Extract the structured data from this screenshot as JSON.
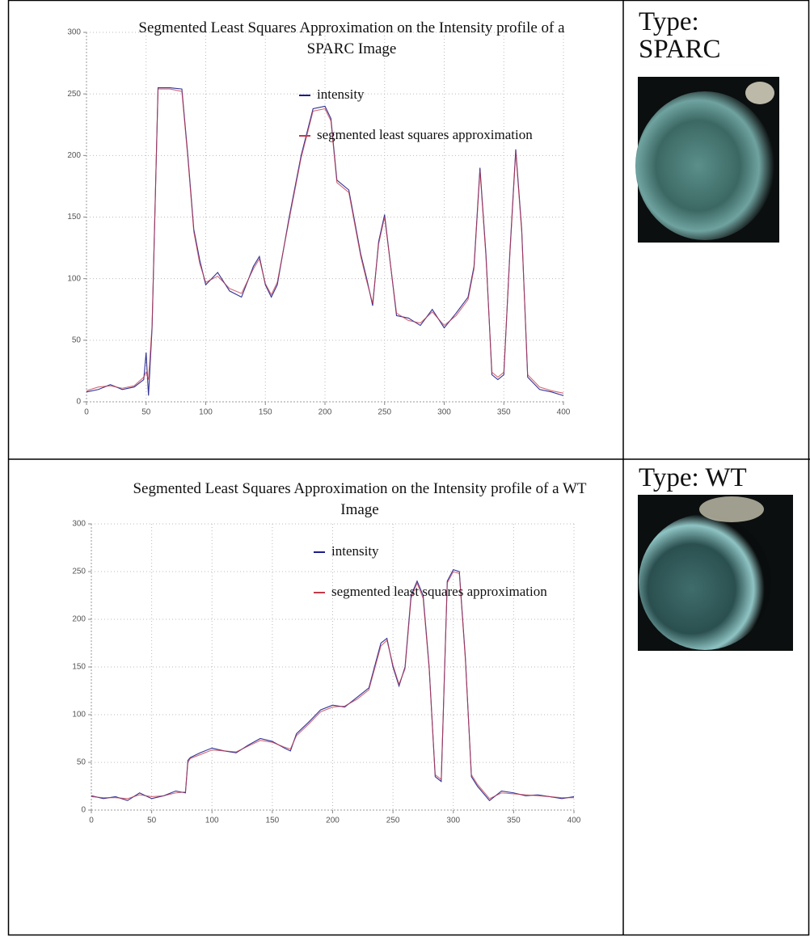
{
  "chart_data": [
    {
      "type": "line",
      "title": "Segmented Least Squares Approximation on the Intensity profile of a SPARC Image",
      "x": [
        0,
        10,
        20,
        30,
        40,
        48,
        50,
        52,
        55,
        60,
        70,
        80,
        85,
        90,
        95,
        100,
        110,
        120,
        130,
        140,
        145,
        150,
        155,
        160,
        170,
        180,
        190,
        200,
        205,
        210,
        220,
        230,
        235,
        240,
        245,
        250,
        260,
        270,
        280,
        290,
        300,
        310,
        320,
        325,
        330,
        335,
        340,
        345,
        350,
        355,
        360,
        365,
        370,
        380,
        390,
        400
      ],
      "series": [
        {
          "name": "intensity",
          "color": "#1c1c8a",
          "values": [
            8,
            10,
            14,
            10,
            12,
            18,
            40,
            5,
            60,
            255,
            255,
            254,
            200,
            140,
            115,
            95,
            105,
            90,
            85,
            110,
            118,
            95,
            85,
            95,
            150,
            200,
            238,
            240,
            230,
            180,
            172,
            120,
            100,
            78,
            130,
            152,
            70,
            68,
            62,
            75,
            60,
            72,
            85,
            110,
            190,
            120,
            22,
            18,
            22,
            120,
            205,
            140,
            20,
            10,
            8,
            5
          ]
        },
        {
          "name": "segmented least squares approximation",
          "color": "#c23a4a",
          "values": [
            9,
            12,
            13,
            11,
            13,
            20,
            24,
            18,
            62,
            254,
            254,
            252,
            198,
            138,
            112,
            97,
            102,
            92,
            88,
            108,
            116,
            96,
            87,
            97,
            148,
            198,
            236,
            238,
            228,
            178,
            170,
            118,
            98,
            80,
            128,
            150,
            72,
            66,
            64,
            73,
            62,
            70,
            83,
            108,
            188,
            118,
            24,
            20,
            24,
            118,
            203,
            138,
            22,
            12,
            9,
            7
          ]
        }
      ],
      "xlim": [
        0,
        400
      ],
      "ylim": [
        0,
        300
      ],
      "xticks": [
        0,
        50,
        100,
        150,
        200,
        250,
        300,
        350,
        400
      ],
      "yticks": [
        0,
        50,
        100,
        150,
        200,
        250,
        300
      ],
      "grid": true,
      "legend": "upper center"
    },
    {
      "type": "line",
      "title": "Segmented Least Squares Approximation on the Intensity profile of a WT Image",
      "x": [
        0,
        10,
        20,
        30,
        40,
        50,
        60,
        70,
        78,
        80,
        82,
        90,
        100,
        110,
        120,
        130,
        140,
        150,
        160,
        165,
        170,
        180,
        190,
        200,
        210,
        220,
        230,
        240,
        245,
        250,
        255,
        260,
        265,
        270,
        275,
        280,
        285,
        290,
        295,
        300,
        305,
        310,
        315,
        320,
        330,
        340,
        350,
        360,
        370,
        380,
        390,
        400
      ],
      "series": [
        {
          "name": "intensity",
          "color": "#1c1c8a",
          "values": [
            15,
            12,
            14,
            10,
            18,
            12,
            15,
            20,
            18,
            52,
            55,
            60,
            65,
            62,
            60,
            68,
            75,
            72,
            65,
            62,
            80,
            92,
            105,
            110,
            108,
            118,
            128,
            175,
            180,
            150,
            130,
            150,
            225,
            240,
            225,
            150,
            35,
            30,
            240,
            252,
            250,
            160,
            35,
            25,
            10,
            20,
            18,
            15,
            16,
            14,
            12,
            14
          ]
        },
        {
          "name": "segmented least squares approximation",
          "color": "#c23a4a",
          "values": [
            14,
            13,
            13,
            12,
            16,
            14,
            15,
            18,
            19,
            50,
            54,
            58,
            63,
            62,
            61,
            67,
            73,
            71,
            66,
            64,
            78,
            90,
            103,
            108,
            109,
            116,
            126,
            172,
            178,
            152,
            132,
            148,
            222,
            238,
            222,
            148,
            37,
            32,
            238,
            250,
            248,
            158,
            37,
            27,
            12,
            18,
            17,
            16,
            15,
            14,
            13,
            13
          ]
        }
      ],
      "xlim": [
        0,
        400
      ],
      "ylim": [
        0,
        300
      ],
      "xticks": [
        0,
        50,
        100,
        150,
        200,
        250,
        300,
        350,
        400
      ],
      "yticks": [
        0,
        50,
        100,
        150,
        200,
        250,
        300
      ],
      "grid": true,
      "legend": "upper center"
    }
  ],
  "panels": [
    {
      "label": "Type: SPARC"
    },
    {
      "label": "Type: WT"
    }
  ]
}
